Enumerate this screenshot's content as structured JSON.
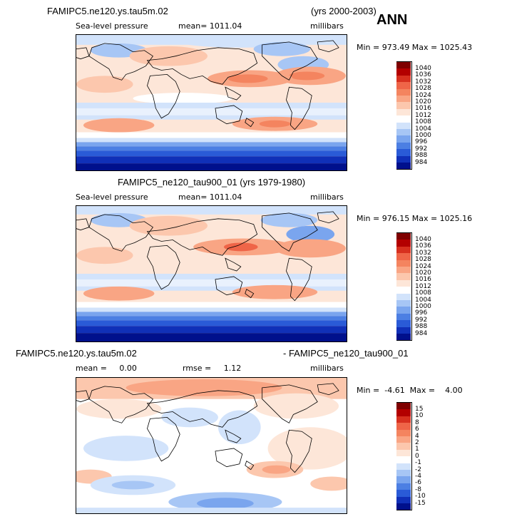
{
  "header": {
    "ann": "ANN"
  },
  "panels": [
    {
      "id": "p1",
      "title_left": "FAMIPC5.ne120.ys.tau5m.02",
      "title_right": "(yrs 2000-2003)",
      "variable": "Sea-level pressure",
      "stat": "mean= 1011.04",
      "units": "millibars",
      "minmax": "Min = 973.49  Max = 1025.43",
      "colorbar": {
        "ticks": [
          "1040",
          "1036",
          "1032",
          "1028",
          "1024",
          "1020",
          "1016",
          "1012",
          "1008",
          "1004",
          "1000",
          "996",
          "992",
          "988",
          "984"
        ],
        "colors": [
          "#7f0000",
          "#b30000",
          "#d7301f",
          "#ef6548",
          "#f4845f",
          "#f9a584",
          "#fcc7ad",
          "#fde6d8",
          "#ffffff",
          "#d2e3fb",
          "#a7c6f5",
          "#7aa5ee",
          "#4c7fe3",
          "#2a5bd7",
          "#1030b8",
          "#00108c"
        ]
      }
    },
    {
      "id": "p2",
      "title_left": "FAMIPC5_ne120_tau900_01 (yrs 1979-1980)",
      "title_right": "",
      "variable": "Sea-level pressure",
      "stat": "mean= 1011.04",
      "units": "millibars",
      "minmax": "Min = 976.15  Max = 1025.16",
      "colorbar": {
        "ticks": [
          "1040",
          "1036",
          "1032",
          "1028",
          "1024",
          "1020",
          "1016",
          "1012",
          "1008",
          "1004",
          "1000",
          "996",
          "992",
          "988",
          "984"
        ],
        "colors": [
          "#7f0000",
          "#b30000",
          "#d7301f",
          "#ef6548",
          "#f4845f",
          "#f9a584",
          "#fcc7ad",
          "#fde6d8",
          "#ffffff",
          "#d2e3fb",
          "#a7c6f5",
          "#7aa5ee",
          "#4c7fe3",
          "#2a5bd7",
          "#1030b8",
          "#00108c"
        ]
      }
    },
    {
      "id": "p3",
      "title_left": "FAMIPC5.ne120.ys.tau5m.02",
      "title_right": "- FAMIPC5_ne120_tau900_01",
      "variable": "mean =     0.00",
      "stat": "rmse =     1.12",
      "units": "millibars",
      "minmax": "Min =  -4.61  Max =    4.00",
      "colorbar": {
        "ticks": [
          "15",
          "10",
          "8",
          "6",
          "4",
          "2",
          "1",
          "0",
          "-1",
          "-2",
          "-4",
          "-6",
          "-8",
          "-10",
          "-15"
        ],
        "colors": [
          "#7f0000",
          "#b30000",
          "#d7301f",
          "#ef6548",
          "#f4845f",
          "#f9a584",
          "#fcc7ad",
          "#fde6d8",
          "#ffffff",
          "#d2e3fb",
          "#a7c6f5",
          "#7aa5ee",
          "#4c7fe3",
          "#2a5bd7",
          "#1030b8",
          "#00108c"
        ]
      }
    }
  ]
}
